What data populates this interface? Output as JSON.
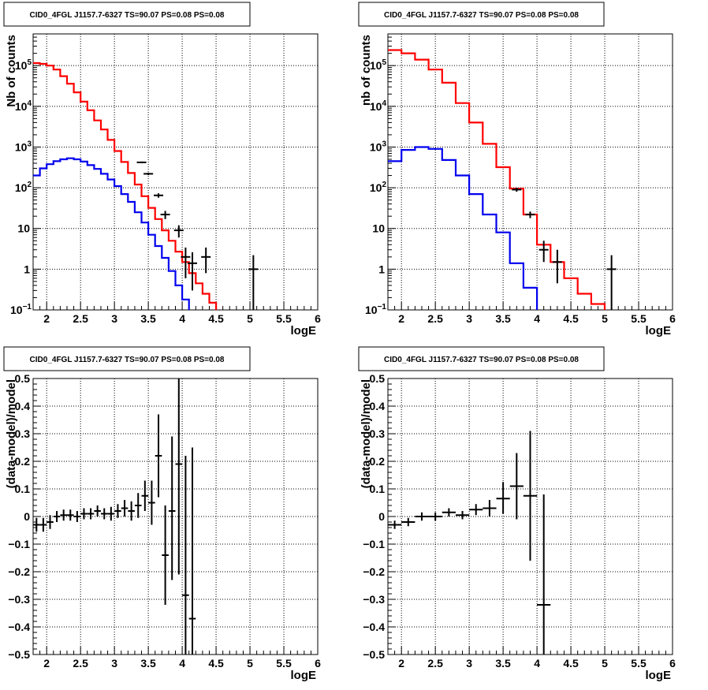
{
  "chart_data": [
    {
      "type": "line",
      "title": "CID0_4FGL J1157.7-6327 TS=90.07 PS=0.08 PS=0.08",
      "xlabel": "logE",
      "ylabel": "Nb of counts",
      "xlim": [
        1.8,
        6.0
      ],
      "ylim": [
        0.1,
        600000
      ],
      "log_y": true,
      "grid": true,
      "x_ticks": [
        "2",
        "2.5",
        "3",
        "3.5",
        "4",
        "4.5",
        "5",
        "5.5",
        "6"
      ],
      "y_ticks": [
        {
          "v": 0.1,
          "b": "10",
          "e": "−1"
        },
        {
          "v": 1,
          "b": "1",
          "e": ""
        },
        {
          "v": 10,
          "b": "10",
          "e": ""
        },
        {
          "v": 100,
          "b": "10",
          "e": "2"
        },
        {
          "v": 1000,
          "b": "10",
          "e": "3"
        },
        {
          "v": 10000,
          "b": "10",
          "e": "4"
        },
        {
          "v": 100000,
          "b": "10",
          "e": "5"
        }
      ],
      "bin_edges": [
        1.8,
        1.9,
        2.0,
        2.1,
        2.2,
        2.3,
        2.4,
        2.5,
        2.6,
        2.7,
        2.8,
        2.9,
        3.0,
        3.1,
        3.2,
        3.3,
        3.4,
        3.5,
        3.6,
        3.7,
        3.8,
        3.9,
        4.0,
        4.1,
        4.2,
        4.3,
        4.4,
        4.5,
        4.6,
        4.7,
        4.8,
        4.9,
        5.0,
        5.1,
        5.2,
        5.3,
        5.4,
        5.5,
        5.6,
        5.7,
        5.8,
        5.9,
        6.0
      ],
      "series": [
        {
          "color": "#ff0000",
          "kind": "step",
          "values": [
            115000,
            110000,
            100000,
            80000,
            55000,
            36000,
            22000,
            13000,
            8000,
            4500,
            2700,
            1500,
            800,
            430,
            230,
            120,
            62,
            32,
            17,
            9,
            5,
            2.7,
            1.5,
            0.8,
            0.45,
            0.25,
            0.15,
            0.08,
            0.08,
            0.08,
            0.08,
            0.08,
            0.08,
            0.08,
            0.08,
            0.08,
            0.08,
            0.08,
            0.08,
            0.08,
            0.08,
            0.08
          ]
        },
        {
          "color": "#0000ee",
          "kind": "step",
          "values": [
            200,
            300,
            380,
            450,
            500,
            530,
            500,
            440,
            360,
            290,
            220,
            160,
            110,
            70,
            45,
            25,
            14,
            7,
            3.7,
            1.9,
            0.9,
            0.4,
            0.18,
            0.09,
            0.09,
            0.09,
            0.09,
            0.09,
            0.09,
            0.09,
            0.09,
            0.09,
            0.09,
            0.09,
            0.09,
            0.09,
            0.09,
            0.09,
            0.09,
            0.09,
            0.09,
            0.09
          ]
        },
        {
          "color": "#000000",
          "kind": "points",
          "points": [
            {
              "x": 3.4,
              "y": 420,
              "lo": 400,
              "hi": 440
            },
            {
              "x": 3.5,
              "y": 220,
              "lo": 205,
              "hi": 235
            },
            {
              "x": 3.65,
              "y": 65,
              "lo": 57,
              "hi": 73
            },
            {
              "x": 3.75,
              "y": 22,
              "lo": 17,
              "hi": 27
            },
            {
              "x": 3.95,
              "y": 9,
              "lo": 6,
              "hi": 12
            },
            {
              "x": 4.05,
              "y": 2,
              "lo": 0.6,
              "hi": 3.4
            },
            {
              "x": 4.15,
              "y": 1.4,
              "lo": 0.3,
              "hi": 2.6
            },
            {
              "x": 4.35,
              "y": 2,
              "lo": 0.8,
              "hi": 3.4
            },
            {
              "x": 5.05,
              "y": 1,
              "lo": 0.1,
              "hi": 2.2
            }
          ]
        }
      ]
    },
    {
      "type": "line",
      "title": "CID0_4FGL J1157.7-6327 TS=90.07 PS=0.08 PS=0.08",
      "xlabel": "logE",
      "ylabel": "nb of counts",
      "xlim": [
        1.8,
        6.0
      ],
      "ylim": [
        0.1,
        600000
      ],
      "log_y": true,
      "grid": true,
      "x_ticks": [
        "2",
        "2.5",
        "3",
        "3.5",
        "4",
        "4.5",
        "5",
        "5.5",
        "6"
      ],
      "y_ticks": [
        {
          "v": 0.1,
          "b": "10",
          "e": "−1"
        },
        {
          "v": 1,
          "b": "1",
          "e": ""
        },
        {
          "v": 10,
          "b": "10",
          "e": ""
        },
        {
          "v": 100,
          "b": "10",
          "e": "2"
        },
        {
          "v": 1000,
          "b": "10",
          "e": "3"
        },
        {
          "v": 10000,
          "b": "10",
          "e": "4"
        },
        {
          "v": 100000,
          "b": "10",
          "e": "5"
        }
      ],
      "bin_edges": [
        1.8,
        2.0,
        2.2,
        2.4,
        2.6,
        2.8,
        3.0,
        3.2,
        3.4,
        3.6,
        3.8,
        4.0,
        4.2,
        4.4,
        4.6,
        4.8,
        5.0,
        5.2,
        5.4,
        5.6,
        5.8,
        6.0
      ],
      "series": [
        {
          "color": "#ff0000",
          "kind": "step",
          "values": [
            240000,
            200000,
            140000,
            80000,
            38000,
            12000,
            4000,
            1200,
            320,
            95,
            22,
            4,
            1.5,
            0.6,
            0.25,
            0.14,
            0.08,
            0.08,
            0.08,
            0.08,
            0.08
          ]
        },
        {
          "color": "#0000ee",
          "kind": "step",
          "values": [
            450,
            850,
            1000,
            900,
            480,
            200,
            70,
            22,
            8,
            1.4,
            0.35,
            0.09,
            0.09,
            0.09,
            0.09,
            0.09,
            0.09,
            0.09,
            0.09,
            0.09,
            0.09
          ]
        },
        {
          "color": "#000000",
          "kind": "points",
          "points": [
            {
              "x": 3.7,
              "y": 90,
              "lo": 80,
              "hi": 100
            },
            {
              "x": 3.9,
              "y": 22,
              "lo": 18,
              "hi": 26
            },
            {
              "x": 4.1,
              "y": 3,
              "lo": 1.5,
              "hi": 5
            },
            {
              "x": 4.3,
              "y": 1.5,
              "lo": 0.45,
              "hi": 3
            },
            {
              "x": 5.1,
              "y": 1,
              "lo": 0.1,
              "hi": 2.2
            }
          ]
        }
      ]
    },
    {
      "type": "scatter",
      "title": "CID0_4FGL J1157.7-6327 TS=90.07 PS=0.08 PS=0.08",
      "xlabel": "logE",
      "ylabel": "(data-model)/model",
      "xlim": [
        1.8,
        6.0
      ],
      "ylim": [
        -0.5,
        0.5
      ],
      "log_y": false,
      "grid": true,
      "x_ticks": [
        "2",
        "2.5",
        "3",
        "3.5",
        "4",
        "4.5",
        "5",
        "5.5",
        "6"
      ],
      "y_ticks": [
        {
          "v": 0.5,
          "b": "0.5",
          "e": ""
        },
        {
          "v": 0.4,
          "b": "0.4",
          "e": ""
        },
        {
          "v": 0.3,
          "b": "0.3",
          "e": ""
        },
        {
          "v": 0.2,
          "b": "0.2",
          "e": ""
        },
        {
          "v": 0.1,
          "b": "0.1",
          "e": ""
        },
        {
          "v": 0,
          "b": "0",
          "e": ""
        },
        {
          "v": -0.1,
          "b": "−0.1",
          "e": ""
        },
        {
          "v": -0.2,
          "b": "−0.2",
          "e": ""
        },
        {
          "v": -0.3,
          "b": "−0.3",
          "e": ""
        },
        {
          "v": -0.4,
          "b": "−0.4",
          "e": ""
        },
        {
          "v": -0.5,
          "b": "−0.5",
          "e": ""
        }
      ],
      "xerr": 0.05,
      "points": [
        {
          "x": 1.85,
          "y": -0.03,
          "lo": -0.055,
          "hi": -0.005
        },
        {
          "x": 1.95,
          "y": -0.03,
          "lo": -0.055,
          "hi": -0.005
        },
        {
          "x": 2.05,
          "y": -0.02,
          "lo": -0.045,
          "hi": 0.005
        },
        {
          "x": 2.15,
          "y": 0.0,
          "lo": -0.02,
          "hi": 0.02
        },
        {
          "x": 2.25,
          "y": 0.005,
          "lo": -0.015,
          "hi": 0.025
        },
        {
          "x": 2.35,
          "y": 0.005,
          "lo": -0.015,
          "hi": 0.025
        },
        {
          "x": 2.45,
          "y": 0.0,
          "lo": -0.02,
          "hi": 0.02
        },
        {
          "x": 2.55,
          "y": 0.01,
          "lo": -0.01,
          "hi": 0.03
        },
        {
          "x": 2.65,
          "y": 0.01,
          "lo": -0.01,
          "hi": 0.03
        },
        {
          "x": 2.75,
          "y": 0.02,
          "lo": 0.0,
          "hi": 0.04
        },
        {
          "x": 2.85,
          "y": 0.01,
          "lo": -0.01,
          "hi": 0.03
        },
        {
          "x": 2.95,
          "y": 0.01,
          "lo": -0.015,
          "hi": 0.035
        },
        {
          "x": 3.05,
          "y": 0.02,
          "lo": -0.005,
          "hi": 0.045
        },
        {
          "x": 3.15,
          "y": 0.03,
          "lo": 0.0,
          "hi": 0.06
        },
        {
          "x": 3.25,
          "y": 0.02,
          "lo": -0.015,
          "hi": 0.055
        },
        {
          "x": 3.35,
          "y": 0.04,
          "lo": -0.005,
          "hi": 0.085
        },
        {
          "x": 3.45,
          "y": 0.075,
          "lo": 0.02,
          "hi": 0.13
        },
        {
          "x": 3.55,
          "y": 0.05,
          "lo": -0.03,
          "hi": 0.13
        },
        {
          "x": 3.65,
          "y": 0.22,
          "lo": 0.07,
          "hi": 0.37
        },
        {
          "x": 3.75,
          "y": -0.14,
          "lo": -0.32,
          "hi": 0.04
        },
        {
          "x": 3.85,
          "y": 0.02,
          "lo": -0.23,
          "hi": 0.29
        },
        {
          "x": 3.95,
          "y": 0.19,
          "lo": -0.21,
          "hi": 0.5
        },
        {
          "x": 4.05,
          "y": -0.285,
          "lo": -0.5,
          "hi": 0.22
        },
        {
          "x": 4.15,
          "y": -0.37,
          "lo": -0.5,
          "hi": 0.25
        }
      ]
    },
    {
      "type": "scatter",
      "title": "CID0_4FGL J1157.7-6327 TS=90.07 PS=0.08 PS=0.08",
      "xlabel": "logE",
      "ylabel": "(data-model)/model",
      "xlim": [
        1.8,
        6.0
      ],
      "ylim": [
        -0.5,
        0.5
      ],
      "log_y": false,
      "grid": true,
      "x_ticks": [
        "2",
        "2.5",
        "3",
        "3.5",
        "4",
        "4.5",
        "5",
        "5.5",
        "6"
      ],
      "y_ticks": [
        {
          "v": 0.5,
          "b": "0.5",
          "e": ""
        },
        {
          "v": 0.4,
          "b": "0.4",
          "e": ""
        },
        {
          "v": 0.3,
          "b": "0.3",
          "e": ""
        },
        {
          "v": 0.2,
          "b": "0.2",
          "e": ""
        },
        {
          "v": 0.1,
          "b": "0.1",
          "e": ""
        },
        {
          "v": 0,
          "b": "0",
          "e": ""
        },
        {
          "v": -0.1,
          "b": "−0.1",
          "e": ""
        },
        {
          "v": -0.2,
          "b": "−0.2",
          "e": ""
        },
        {
          "v": -0.3,
          "b": "−0.3",
          "e": ""
        },
        {
          "v": -0.4,
          "b": "−0.4",
          "e": ""
        },
        {
          "v": -0.5,
          "b": "−0.5",
          "e": ""
        }
      ],
      "xerr": 0.1,
      "points": [
        {
          "x": 1.9,
          "y": -0.03,
          "lo": -0.045,
          "hi": -0.015
        },
        {
          "x": 2.1,
          "y": -0.02,
          "lo": -0.035,
          "hi": -0.005
        },
        {
          "x": 2.3,
          "y": 0.0,
          "lo": -0.015,
          "hi": 0.015
        },
        {
          "x": 2.5,
          "y": 0.0,
          "lo": -0.015,
          "hi": 0.015
        },
        {
          "x": 2.7,
          "y": 0.015,
          "lo": 0.0,
          "hi": 0.03
        },
        {
          "x": 2.9,
          "y": 0.005,
          "lo": -0.01,
          "hi": 0.02
        },
        {
          "x": 3.1,
          "y": 0.025,
          "lo": 0.005,
          "hi": 0.045
        },
        {
          "x": 3.3,
          "y": 0.03,
          "lo": 0.0,
          "hi": 0.06
        },
        {
          "x": 3.5,
          "y": 0.065,
          "lo": 0.01,
          "hi": 0.125
        },
        {
          "x": 3.7,
          "y": 0.11,
          "lo": -0.01,
          "hi": 0.23
        },
        {
          "x": 3.9,
          "y": 0.075,
          "lo": -0.16,
          "hi": 0.31
        },
        {
          "x": 4.1,
          "y": -0.32,
          "lo": -0.5,
          "hi": 0.08
        }
      ]
    }
  ]
}
